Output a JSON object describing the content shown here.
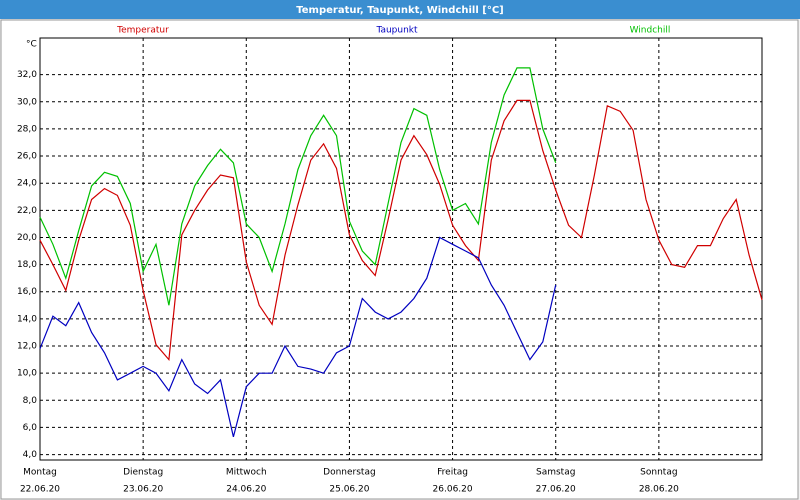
{
  "chart_data": {
    "type": "line",
    "title": "Temperatur, Taupunkt, Windchill [°C]",
    "y_unit": "°C",
    "x": [
      0,
      3,
      6,
      9,
      12,
      15,
      18,
      21,
      24,
      27,
      30,
      33,
      36,
      39,
      42,
      45,
      48,
      51,
      54,
      57,
      60,
      63,
      66,
      69,
      72,
      75,
      78,
      81,
      84,
      87,
      90,
      93,
      96,
      99,
      102,
      105,
      108,
      111,
      114,
      117,
      120,
      123,
      126,
      129,
      132,
      135,
      138,
      141,
      144,
      147,
      150,
      153,
      156,
      159,
      162,
      165,
      168
    ],
    "xlim": [
      0,
      168
    ],
    "xticks": [
      {
        "value": 0,
        "label": [
          "Montag",
          "22.06.20"
        ]
      },
      {
        "value": 24,
        "label": [
          "Dienstag",
          "23.06.20"
        ]
      },
      {
        "value": 48,
        "label": [
          "Mittwoch",
          "24.06.20"
        ]
      },
      {
        "value": 72,
        "label": [
          "Donnerstag",
          "25.06.20"
        ]
      },
      {
        "value": 96,
        "label": [
          "Freitag",
          "26.06.20"
        ]
      },
      {
        "value": 120,
        "label": [
          "Samstag",
          "27.06.20"
        ]
      },
      {
        "value": 144,
        "label": [
          "Sonntag",
          "28.06.20"
        ]
      }
    ],
    "ylim": [
      3.6,
      34.7
    ],
    "yticks": [
      {
        "value": 4,
        "label": "4,0"
      },
      {
        "value": 6,
        "label": "6,0"
      },
      {
        "value": 8,
        "label": "8,0"
      },
      {
        "value": 10,
        "label": "10,0"
      },
      {
        "value": 12,
        "label": "12,0"
      },
      {
        "value": 14,
        "label": "14,0"
      },
      {
        "value": 16,
        "label": "16,0"
      },
      {
        "value": 18,
        "label": "18,0"
      },
      {
        "value": 20,
        "label": "20,0"
      },
      {
        "value": 22,
        "label": "22,0"
      },
      {
        "value": 24,
        "label": "24,0"
      },
      {
        "value": 26,
        "label": "26,0"
      },
      {
        "value": 28,
        "label": "28,0"
      },
      {
        "value": 30,
        "label": "30,0"
      },
      {
        "value": 32,
        "label": "32,0"
      }
    ],
    "grid": true,
    "series": [
      {
        "name": "Temperatur",
        "color": "#d00000",
        "values": [
          19.8,
          18,
          16.1,
          19.8,
          22.8,
          23.6,
          23.1,
          20.9,
          16.1,
          12.1,
          11,
          20.2,
          22,
          23.5,
          24.6,
          24.4,
          18.2,
          15,
          13.6,
          18.7,
          22.4,
          25.7,
          26.9,
          25.1,
          20.2,
          18.3,
          17.2,
          21.3,
          25.7,
          27.5,
          26.1,
          23.9,
          20.9,
          19.4,
          18.3,
          25.7,
          28.6,
          30.1,
          30.1,
          26.4,
          23.5,
          20.9,
          20,
          24.6,
          29.7,
          29.3,
          27.9,
          22.8,
          19.8,
          18,
          17.8,
          19.4,
          19.4,
          21.4,
          22.8,
          18.7,
          15.4
        ]
      },
      {
        "name": "Taupunkt",
        "color": "#0000c0",
        "values": [
          11.8,
          14.2,
          13.5,
          15.2,
          13,
          11.5,
          9.5,
          10,
          10.5,
          10,
          8.7,
          11,
          9.2,
          8.5,
          9.5,
          5.3,
          9,
          10,
          10,
          12,
          10.5,
          10.3,
          10,
          11.5,
          12,
          15.5,
          14.5,
          14,
          14.5,
          15.5,
          17,
          20,
          19.5,
          19,
          18.5,
          16.5,
          15,
          13,
          11,
          12.3,
          16.5,
          null,
          null,
          null,
          null,
          null,
          null,
          null,
          null,
          null,
          null,
          null,
          null,
          null,
          null,
          null,
          null
        ]
      },
      {
        "name": "Windchill",
        "color": "#00c000",
        "values": [
          21.5,
          19.5,
          17,
          20.5,
          23.8,
          24.8,
          24.5,
          22.5,
          17.5,
          19.5,
          15,
          21,
          23.8,
          25.3,
          26.5,
          25.5,
          21,
          20,
          17.5,
          21,
          25,
          27.5,
          29,
          27.5,
          21.2,
          19,
          18,
          22.5,
          27,
          29.5,
          29,
          25,
          22,
          22.5,
          21,
          27,
          30.5,
          32.5,
          32.5,
          28,
          25.5,
          null,
          null,
          null,
          null,
          null,
          null,
          null,
          null,
          null,
          null,
          null,
          null,
          null,
          null,
          null,
          null
        ]
      }
    ]
  }
}
